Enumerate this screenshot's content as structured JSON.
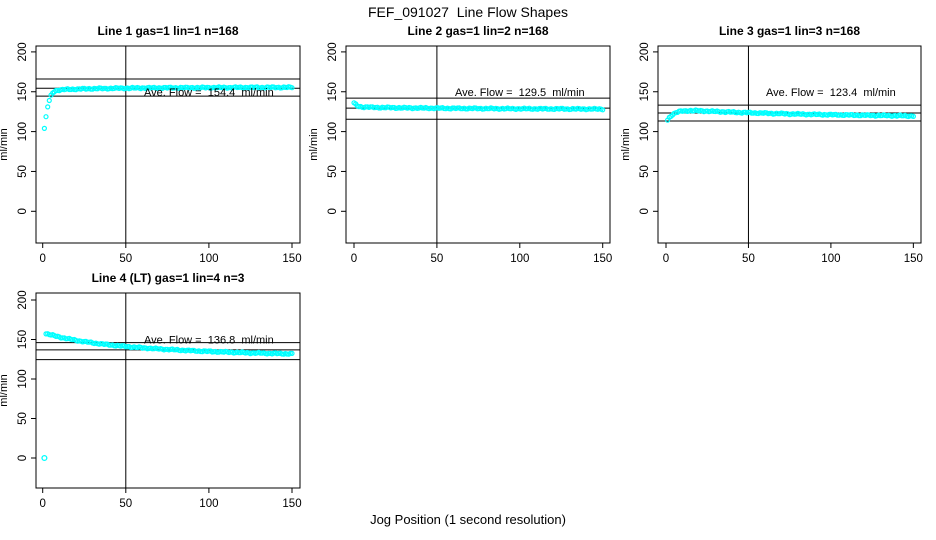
{
  "figure": {
    "title": "FEF_091027  Line Flow Shapes",
    "xlabel": "Jog Position (1 second resolution)",
    "ylabel": "ml/min",
    "point_color": "#00FFFF",
    "line_color": "#000000"
  },
  "chart_data": [
    {
      "type": "scatter",
      "title": "Line 1 gas=1 lin=1 n=168",
      "gas": 1,
      "lin": 1,
      "n": 168,
      "ave_flow": 154.4,
      "ave_flow_label": "Ave. Flow =  154.4  ml/min",
      "x_ticks": [
        0,
        50,
        100,
        150
      ],
      "y_ticks": [
        0,
        50,
        100,
        150,
        200
      ],
      "xlim": [
        -4,
        155
      ],
      "ylim": [
        -40,
        208
      ],
      "vline_x": 50,
      "upper_line": 166.0,
      "mean_line": 154.4,
      "lower_line": 144.5,
      "label_anchor": {
        "x": 100,
        "y": 150
      },
      "n_points": 150,
      "points_keyframes": [
        [
          1,
          104
        ],
        [
          2,
          118
        ],
        [
          3,
          131
        ],
        [
          4,
          139
        ],
        [
          5,
          145
        ],
        [
          6,
          148.5
        ],
        [
          7,
          150.5
        ],
        [
          8,
          151.5
        ],
        [
          10,
          152.3
        ],
        [
          15,
          153
        ],
        [
          20,
          153.4
        ],
        [
          30,
          153.9
        ],
        [
          45,
          154.4
        ],
        [
          60,
          154.8
        ],
        [
          80,
          155
        ],
        [
          100,
          155.2
        ],
        [
          125,
          155.4
        ],
        [
          150,
          155.5
        ]
      ],
      "extra_points": []
    },
    {
      "type": "scatter",
      "title": "Line 2 gas=1 lin=2 n=168",
      "gas": 1,
      "lin": 2,
      "n": 168,
      "ave_flow": 129.5,
      "ave_flow_label": "Ave. Flow =  129.5  ml/min",
      "x_ticks": [
        0,
        50,
        100,
        150
      ],
      "y_ticks": [
        0,
        50,
        100,
        150,
        200
      ],
      "xlim": [
        -4,
        155
      ],
      "ylim": [
        -40,
        208
      ],
      "vline_x": 50,
      "upper_line": 142.0,
      "mean_line": 129.5,
      "lower_line": 115.5,
      "label_anchor": {
        "x": 100,
        "y": 150
      },
      "n_points": 150,
      "points_keyframes": [
        [
          0,
          135.8
        ],
        [
          1,
          134
        ],
        [
          2,
          132.5
        ],
        [
          3,
          131.6
        ],
        [
          5,
          131
        ],
        [
          8,
          130.7
        ],
        [
          12,
          130.4
        ],
        [
          20,
          130.1
        ],
        [
          30,
          129.8
        ],
        [
          45,
          129.5
        ],
        [
          60,
          129.2
        ],
        [
          80,
          128.9
        ],
        [
          100,
          128.7
        ],
        [
          125,
          128.5
        ],
        [
          150,
          128.3
        ]
      ],
      "extra_points": []
    },
    {
      "type": "scatter",
      "title": "Line 3 gas=1 lin=3 n=168",
      "gas": 1,
      "lin": 3,
      "n": 168,
      "ave_flow": 123.4,
      "ave_flow_label": "Ave. Flow =  123.4  ml/min",
      "x_ticks": [
        0,
        50,
        100,
        150
      ],
      "y_ticks": [
        0,
        50,
        100,
        150,
        200
      ],
      "xlim": [
        -4,
        155
      ],
      "ylim": [
        -40,
        208
      ],
      "vline_x": 50,
      "upper_line": 133.2,
      "mean_line": 123.4,
      "lower_line": 113.3,
      "label_anchor": {
        "x": 100,
        "y": 150
      },
      "n_points": 150,
      "points_keyframes": [
        [
          1,
          114.5
        ],
        [
          2,
          117.5
        ],
        [
          3,
          119.8
        ],
        [
          4,
          121.5
        ],
        [
          6,
          123.8
        ],
        [
          8,
          125
        ],
        [
          10,
          125.8
        ],
        [
          14,
          126.3
        ],
        [
          18,
          126.2
        ],
        [
          25,
          125.7
        ],
        [
          35,
          124.8
        ],
        [
          50,
          123.7
        ],
        [
          65,
          122.8
        ],
        [
          80,
          122
        ],
        [
          100,
          121.2
        ],
        [
          120,
          120.5
        ],
        [
          135,
          120.1
        ],
        [
          150,
          119.7
        ]
      ],
      "extra_points": []
    },
    {
      "type": "scatter",
      "title": "Line 4 (LT) gas=1 lin=4 n=3",
      "gas": 1,
      "lin": 4,
      "n": 3,
      "ave_flow": 136.8,
      "ave_flow_label": "Ave. Flow =  136.8  ml/min",
      "x_ticks": [
        0,
        50,
        100,
        150
      ],
      "y_ticks": [
        0,
        50,
        100,
        150,
        200
      ],
      "xlim": [
        -4,
        155
      ],
      "ylim": [
        -40,
        208
      ],
      "vline_x": 50,
      "upper_line": 146.0,
      "mean_line": 136.8,
      "lower_line": 124.5,
      "label_anchor": {
        "x": 100,
        "y": 150
      },
      "n_points": 149,
      "points_keyframes": [
        [
          2,
          157.5
        ],
        [
          4,
          156.5
        ],
        [
          6,
          155.3
        ],
        [
          8,
          154.2
        ],
        [
          12,
          152.3
        ],
        [
          16,
          150.6
        ],
        [
          20,
          149
        ],
        [
          25,
          147.3
        ],
        [
          30,
          145.8
        ],
        [
          35,
          144.5
        ],
        [
          40,
          143.3
        ],
        [
          45,
          142.2
        ],
        [
          50,
          141.2
        ],
        [
          60,
          139.5
        ],
        [
          70,
          138.1
        ],
        [
          80,
          136.9
        ],
        [
          90,
          135.8
        ],
        [
          100,
          134.9
        ],
        [
          110,
          134.1
        ],
        [
          120,
          133.4
        ],
        [
          130,
          132.8
        ],
        [
          140,
          132.3
        ],
        [
          150,
          131.9
        ]
      ],
      "extra_points": [
        [
          1,
          0
        ]
      ]
    }
  ]
}
